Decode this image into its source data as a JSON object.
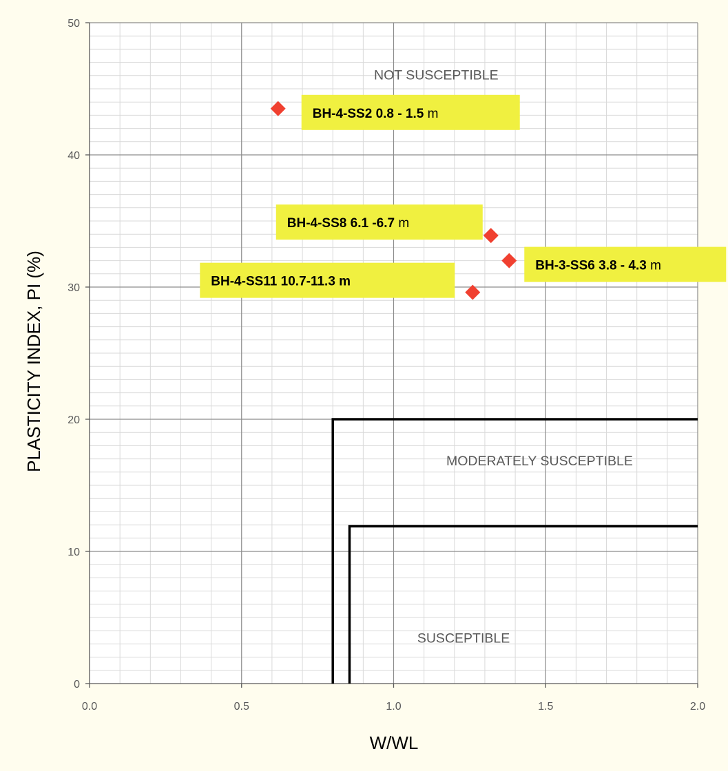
{
  "chart_data": {
    "type": "scatter",
    "xlabel": "W/WL",
    "ylabel": "PLASTICITY INDEX, PI (%)",
    "xlim": [
      0,
      2.0
    ],
    "ylim": [
      0,
      50
    ],
    "x_ticks": [
      "0.0",
      "0.5",
      "1.0",
      "1.5",
      "2.0"
    ],
    "y_ticks": [
      "0",
      "10",
      "20",
      "30",
      "40",
      "50"
    ],
    "grid": true,
    "series": [
      {
        "color": "#f04030",
        "marker": "diamond",
        "points": [
          {
            "x": 0.62,
            "y": 43.5,
            "label_bold": "BH-4-SS2 0.8 - 1.5",
            "label_normal": " m"
          },
          {
            "x": 1.32,
            "y": 33.9,
            "label_bold": "BH-4-SS8 6.1 -6.7",
            "label_normal": " m"
          },
          {
            "x": 1.38,
            "y": 32.0,
            "label_bold": "BH-3-SS6 3.8 - 4.3",
            "label_normal": " m"
          },
          {
            "x": 1.26,
            "y": 29.6,
            "label_bold": "BH-4-SS11 10.7-11.3 m",
            "label_normal": ""
          }
        ]
      }
    ],
    "boundaries": [
      {
        "vertical_x": 0.8,
        "horizontal_y": 20,
        "x_end": 2.0
      },
      {
        "vertical_x": 0.855,
        "horizontal_y": 11.9,
        "x_end": 2.0
      }
    ],
    "regions": [
      {
        "label": "NOT SUSCEPTIBLE",
        "x": 1.14,
        "y": 45.7
      },
      {
        "label": "MODERATELY SUSCEPTIBLE",
        "x": 1.48,
        "y": 16.5
      },
      {
        "label": "SUSCEPTIBLE",
        "x": 1.23,
        "y": 3.1
      }
    ],
    "label_highlight_color": "#f0f040"
  }
}
